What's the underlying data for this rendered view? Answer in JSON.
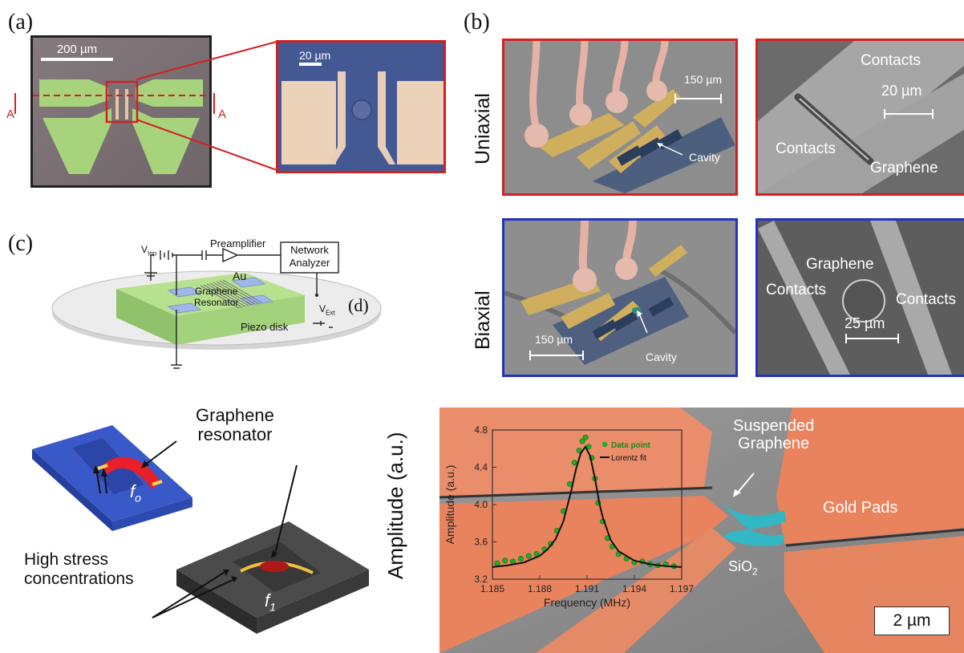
{
  "panel_a": {
    "label": "(a)",
    "scale_main": "200 µm",
    "scale_zoom": "20 µm",
    "section_marker": "A"
  },
  "panel_b": {
    "label": "(b)",
    "row1_title": "Uniaxial",
    "row2_title": "Biaxial",
    "scale_150": "150 µm",
    "cavity": "Cavity",
    "contacts": "Contacts",
    "graphene": "Graphene",
    "scale_20": "20 µm",
    "scale_25": "25 µm"
  },
  "panel_c": {
    "label": "(c)",
    "v_inp": "V",
    "v_inp_sub": "Inp",
    "preamplifier": "Preamplifier",
    "network_line1": "Network",
    "network_line2": "Analyzer",
    "au": "Au",
    "graphene_line1": "Graphene",
    "graphene_line2": "Resonator",
    "v_ext": "V",
    "v_ext_sub": "Ext",
    "piezo": "Piezo disk"
  },
  "panel_d": {
    "label": "(d)",
    "resonator_line1": "Graphene",
    "resonator_line2": "resonator",
    "stress_line1": "High stress",
    "stress_line2": "concentrations",
    "f0": "f",
    "f0_sub": "o",
    "f1": "f",
    "f1_sub": "1",
    "amp_axis": "Amplitude (a.u.)"
  },
  "panel_e": {
    "suspended_line1": "Suspended",
    "suspended_line2": "Graphene",
    "gold_pads": "Gold Pads",
    "sio2": "SiO",
    "sio2_sub": "2",
    "scale": "2 µm"
  },
  "chart_data": {
    "type": "scatter",
    "xlabel": "Frequency (MHz)",
    "ylabel": "Amplitude (a.u.)",
    "xlim": [
      1.185,
      1.197
    ],
    "ylim": [
      3.2,
      4.8
    ],
    "xticks": [
      "1.185",
      "1.188",
      "1.191",
      "1.194",
      "1.197"
    ],
    "yticks": [
      "3.2",
      "3.6",
      "4.0",
      "4.4",
      "4.8"
    ],
    "legend_position": "top-right",
    "series": [
      {
        "name": "Data point",
        "kind": "scatter",
        "color": "#22aa22",
        "x": [
          1.1853,
          1.1858,
          1.1863,
          1.1868,
          1.1873,
          1.1878,
          1.1883,
          1.1887,
          1.1891,
          1.1895,
          1.1899,
          1.1902,
          1.1905,
          1.1907,
          1.1909,
          1.1911,
          1.1913,
          1.1915,
          1.1917,
          1.192,
          1.1923,
          1.1926,
          1.193,
          1.1935,
          1.194,
          1.1945,
          1.195,
          1.1955,
          1.196,
          1.1965
        ],
        "y": [
          3.37,
          3.4,
          3.39,
          3.42,
          3.45,
          3.47,
          3.52,
          3.58,
          3.72,
          3.93,
          4.22,
          4.45,
          4.58,
          4.68,
          4.72,
          4.62,
          4.5,
          4.28,
          4.02,
          3.82,
          3.64,
          3.55,
          3.47,
          3.42,
          3.38,
          3.39,
          3.36,
          3.35,
          3.36,
          3.34
        ]
      },
      {
        "name": "Lorentz fit",
        "kind": "line",
        "color": "#111111",
        "x": [
          1.185,
          1.186,
          1.187,
          1.188,
          1.1885,
          1.189,
          1.1895,
          1.19,
          1.1903,
          1.1906,
          1.1909,
          1.1912,
          1.1915,
          1.1918,
          1.192,
          1.1925,
          1.193,
          1.194,
          1.195,
          1.196,
          1.197
        ],
        "y": [
          3.33,
          3.35,
          3.38,
          3.45,
          3.52,
          3.63,
          3.82,
          4.15,
          4.38,
          4.55,
          4.62,
          4.52,
          4.28,
          4.0,
          3.86,
          3.62,
          3.5,
          3.4,
          3.36,
          3.34,
          3.33
        ]
      }
    ]
  },
  "colors": {
    "red_frame": "#d42020",
    "blue_frame": "#2432c4",
    "gold_pad": "#e87a52",
    "graphene_cyan": "#29b7c2",
    "fit_line": "#111111",
    "data_point": "#22aa22"
  }
}
